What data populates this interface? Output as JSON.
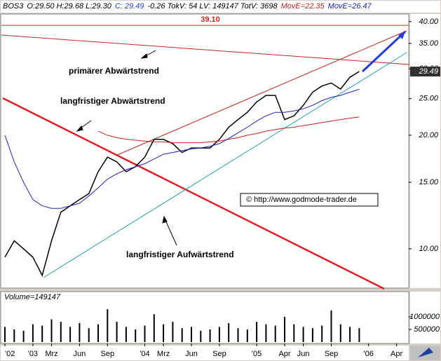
{
  "chart_data": {
    "type": "line",
    "title": "BOS3",
    "info": [
      "O:29.50 H:29.68 L:29.30",
      "C: 29.49",
      "-0.26 TokV: 54 LV: 149147 TotV: 3698"
    ],
    "categories": [
      "'02",
      null,
      null,
      "'03",
      null,
      "Mrz",
      null,
      null,
      "Jun",
      null,
      null,
      "Sep",
      null,
      null,
      null,
      "'04",
      null,
      "Mrz",
      null,
      null,
      "Jun",
      null,
      null,
      "Sep",
      null,
      null,
      null,
      "'05",
      null,
      null,
      "Apr",
      null,
      "Jun",
      null,
      null,
      "Sep",
      null,
      null,
      null,
      "'06",
      null,
      null,
      "Apr"
    ],
    "log_scale": true,
    "ylim": [
      7.9,
      41.9
    ],
    "yticks": [
      {
        "value": 10,
        "label": "10.00"
      },
      {
        "value": 15,
        "label": "15.00"
      },
      {
        "value": 20,
        "label": "20.00"
      },
      {
        "value": 25,
        "label": "25.00"
      },
      {
        "value": 30,
        "label": "30.00"
      },
      {
        "value": 35,
        "label": "35.00"
      },
      {
        "value": 40,
        "label": "40.00"
      }
    ],
    "y2lim": [
      0,
      1940000
    ],
    "y2ticks": [
      500000,
      1000000
    ],
    "grid": false,
    "level": {
      "value": 39.1,
      "label": "39.10"
    },
    "price_tag": 29.49,
    "annotations": [
      "primärer Abwärtstrend",
      "langfristiger Abwärtstrend",
      "langfristiger Aufwärtstrend",
      "© http://www.godmode-trader.de"
    ],
    "series": [
      {
        "name": "BOS3",
        "color": "#000000",
        "values": [
          9.5,
          10.5,
          10.0,
          9.5,
          8.5,
          10.5,
          12.5,
          13,
          13.5,
          14,
          16,
          17.5,
          17,
          16,
          16.5,
          17.5,
          19.5,
          19.5,
          19,
          18,
          18.5,
          18.5,
          18.5,
          19.5,
          21,
          22,
          23,
          24.5,
          25.5,
          25.5,
          22,
          22.5,
          24,
          26,
          27,
          27.5,
          26.5,
          28.5,
          29.5,
          null,
          null,
          null,
          null
        ]
      },
      {
        "name": "MovE=22.35",
        "color": "#cc2020",
        "values": [
          null,
          null,
          null,
          null,
          null,
          null,
          null,
          null,
          null,
          null,
          20.5,
          20,
          19.7,
          19.5,
          19.4,
          19.3,
          19.2,
          19.2,
          19.1,
          19.1,
          19.1,
          19.1,
          19.2,
          19.3,
          19.5,
          19.7,
          20,
          20.2,
          20.5,
          20.7,
          20.9,
          21,
          21.2,
          21.4,
          21.6,
          21.8,
          22,
          22.2,
          22.35,
          null,
          null,
          null,
          null
        ]
      },
      {
        "name": "MovE=26.47",
        "color": "#2020c0",
        "values": [
          20,
          17,
          15,
          13.5,
          13,
          12.8,
          12.8,
          13,
          13.2,
          13.8,
          14.5,
          15.3,
          15.8,
          16.2,
          16.5,
          16.8,
          17.3,
          17.8,
          18,
          18.2,
          18.4,
          18.5,
          18.7,
          19,
          19.6,
          20.3,
          21,
          21.8,
          22.5,
          23,
          23,
          23.2,
          23.5,
          24,
          24.7,
          25.2,
          25.5,
          26,
          26.47,
          null,
          null,
          null,
          null
        ]
      },
      {
        "name": "Volume=149147",
        "type": "bar",
        "axis": "y2",
        "color": "#000000",
        "values": [
          600000,
          500000,
          450000,
          700000,
          650000,
          900000,
          800000,
          600000,
          750000,
          550000,
          700000,
          1300000,
          800000,
          600000,
          500000,
          650000,
          1100000,
          700000,
          800000,
          550000,
          600000,
          450000,
          500000,
          600000,
          750000,
          550000,
          500000,
          800000,
          700000,
          650000,
          1000000,
          700000,
          600000,
          550000,
          650000,
          1250000,
          700000,
          600000,
          550000,
          null,
          null,
          null,
          null
        ]
      }
    ]
  }
}
